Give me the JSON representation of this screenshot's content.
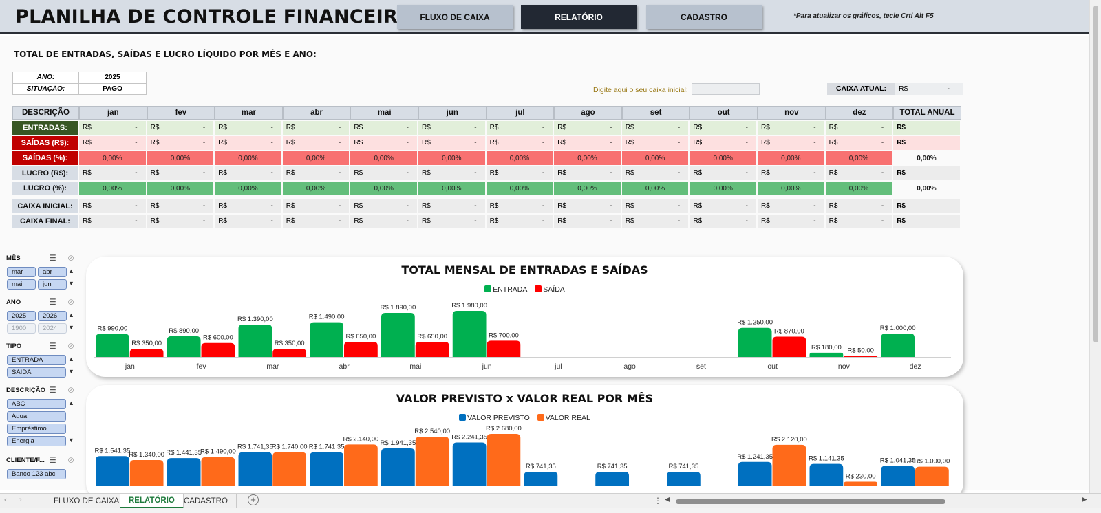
{
  "header": {
    "title": "PLANILHA DE CONTROLE FINANCEIRO",
    "nav": [
      "FLUXO DE CAIXA",
      "RELATÓRIO",
      "CADASTRO"
    ],
    "active_nav": "RELATÓRIO",
    "note": "*Para atualizar os gráficos, tecle Crtl Alt F5"
  },
  "report": {
    "heading": "TOTAL DE ENTRADAS, SAÍDAS E LUCRO LÍQUIDO POR MÊS E ANO:",
    "ano_label": "ANO:",
    "ano_value": "2025",
    "situacao_label": "SITUAÇÃO:",
    "situacao_value": "PAGO",
    "caixa_inicial_prompt": "Digite aqui o seu caixa inicial:",
    "caixa_atual_label": "CAIXA ATUAL:",
    "caixa_atual_rs": "R$",
    "caixa_atual_value": "-"
  },
  "table": {
    "desc_header": "DESCRIÇÃO",
    "months": [
      "jan",
      "fev",
      "mar",
      "abr",
      "mai",
      "jun",
      "jul",
      "ago",
      "set",
      "out",
      "nov",
      "dez"
    ],
    "total_header": "TOTAL ANUAL",
    "currency": "R$",
    "empty": "-",
    "zero_pct": "0,00%",
    "rows": [
      {
        "label": "ENTRADAS:",
        "kind": "money",
        "label_bg": "#375623",
        "cell_bg": "#e2efda"
      },
      {
        "label": "SAÍDAS (R$):",
        "kind": "money",
        "label_bg": "#c00000",
        "cell_bg": "#fde0e0"
      },
      {
        "label": "SAÍDAS (%):",
        "kind": "pct",
        "label_bg": "#c00000",
        "cell_bg": "#f87171"
      },
      {
        "label": "LUCRO (R$):",
        "kind": "money",
        "label_bg": "#d7dde5",
        "cell_bg": "#ececec"
      },
      {
        "label": "LUCRO (%):",
        "kind": "pct",
        "label_bg": "#d7dde5",
        "cell_bg": "#63be7b"
      },
      {
        "label": "CAIXA INICIAL:",
        "kind": "money",
        "label_bg": "#d7dde5",
        "cell_bg": "#ececec"
      },
      {
        "label": "CAIXA FINAL:",
        "kind": "money",
        "label_bg": "#d7dde5",
        "cell_bg": "#ececec"
      }
    ]
  },
  "slicers": [
    {
      "label": "MÊS",
      "items": [
        {
          "text": "mar",
          "on": true
        },
        {
          "text": "abr",
          "on": true
        },
        {
          "text": "mai",
          "on": true
        },
        {
          "text": "jun",
          "on": true
        }
      ]
    },
    {
      "label": "ANO",
      "items": [
        {
          "text": "2025",
          "on": true
        },
        {
          "text": "2026",
          "on": true
        },
        {
          "text": "1900",
          "on": false
        },
        {
          "text": "2024",
          "on": false
        }
      ]
    },
    {
      "label": "TIPO",
      "items": [
        {
          "text": "ENTRADA",
          "on": true
        },
        {
          "text": "SAÍDA",
          "on": true
        }
      ]
    },
    {
      "label": "DESCRIÇÃO",
      "items": [
        {
          "text": "ABC",
          "on": true
        },
        {
          "text": "Água",
          "on": true
        },
        {
          "text": "Empréstimo",
          "on": true
        },
        {
          "text": "Energia",
          "on": true
        }
      ]
    },
    {
      "label": "CLIENTE/F...",
      "items": [
        {
          "text": "Banco 123 abc",
          "on": true
        }
      ]
    }
  ],
  "chart_data": [
    {
      "type": "bar",
      "title": "TOTAL MENSAL DE ENTRADAS E SAÍDAS",
      "categories": [
        "jan",
        "fev",
        "mar",
        "abr",
        "mai",
        "jun",
        "jul",
        "ago",
        "set",
        "out",
        "nov",
        "dez"
      ],
      "series": [
        {
          "name": "ENTRADA",
          "color": "#00b050",
          "values": [
            990,
            890,
            1390,
            1490,
            1890,
            1980,
            null,
            null,
            null,
            1250,
            180,
            1000
          ],
          "labels": [
            "R$ 990,00",
            "R$ 890,00",
            "R$ 1.390,00",
            "R$ 1.490,00",
            "R$ 1.890,00",
            "R$ 1.980,00",
            "",
            "",
            "",
            "R$ 1.250,00",
            "R$ 180,00",
            "R$ 1.000,00"
          ]
        },
        {
          "name": "SAÍDA",
          "color": "#ff0000",
          "values": [
            350,
            600,
            350,
            650,
            650,
            700,
            null,
            null,
            null,
            870,
            50,
            null
          ],
          "labels": [
            "R$ 350,00",
            "R$ 600,00",
            "R$ 350,00",
            "R$ 650,00",
            "R$ 650,00",
            "R$ 700,00",
            "",
            "",
            "",
            "R$ 870,00",
            "R$ 50,00",
            ""
          ]
        }
      ],
      "grid": false,
      "legend": "top-center"
    },
    {
      "type": "bar",
      "title": "VALOR PREVISTO x VALOR REAL POR MÊS",
      "categories": [
        "jan",
        "fev",
        "mar",
        "abr",
        "mai",
        "jun",
        "jul",
        "ago",
        "set",
        "out",
        "nov",
        "dez"
      ],
      "series": [
        {
          "name": "VALOR PREVISTO",
          "color": "#0070c0",
          "values": [
            1541.35,
            1441.35,
            1741.35,
            1741.35,
            1941.35,
            2241.35,
            741.35,
            741.35,
            741.35,
            1241.35,
            1141.35,
            1041.35
          ],
          "labels": [
            "R$ 1.541,35",
            "R$ 1.441,35",
            "R$ 1.741,35",
            "R$ 1.741,35",
            "R$ 1.941,35",
            "R$ 2.241,35",
            "R$ 741,35",
            "R$ 741,35",
            "R$ 741,35",
            "R$ 1.241,35",
            "R$ 1.141,35",
            "R$ 1.041,35"
          ]
        },
        {
          "name": "VALOR REAL",
          "color": "#ff6a1a",
          "values": [
            1340,
            1490,
            1740,
            2140,
            2540,
            2680,
            null,
            null,
            null,
            2120,
            230,
            1000
          ],
          "labels": [
            "R$ 1.340,00",
            "R$ 1.490,00",
            "R$ 1.740,00",
            "R$ 2.140,00",
            "R$ 2.540,00",
            "R$ 2.680,00",
            "",
            "",
            "",
            "R$ 2.120,00",
            "R$ 230,00",
            "R$ 1.000,00"
          ]
        }
      ],
      "grid": false,
      "legend": "top-center"
    }
  ],
  "sheet_tabs": [
    "FLUXO DE CAIXA",
    "RELATÓRIO",
    "CADASTRO"
  ],
  "active_tab": "RELATÓRIO"
}
